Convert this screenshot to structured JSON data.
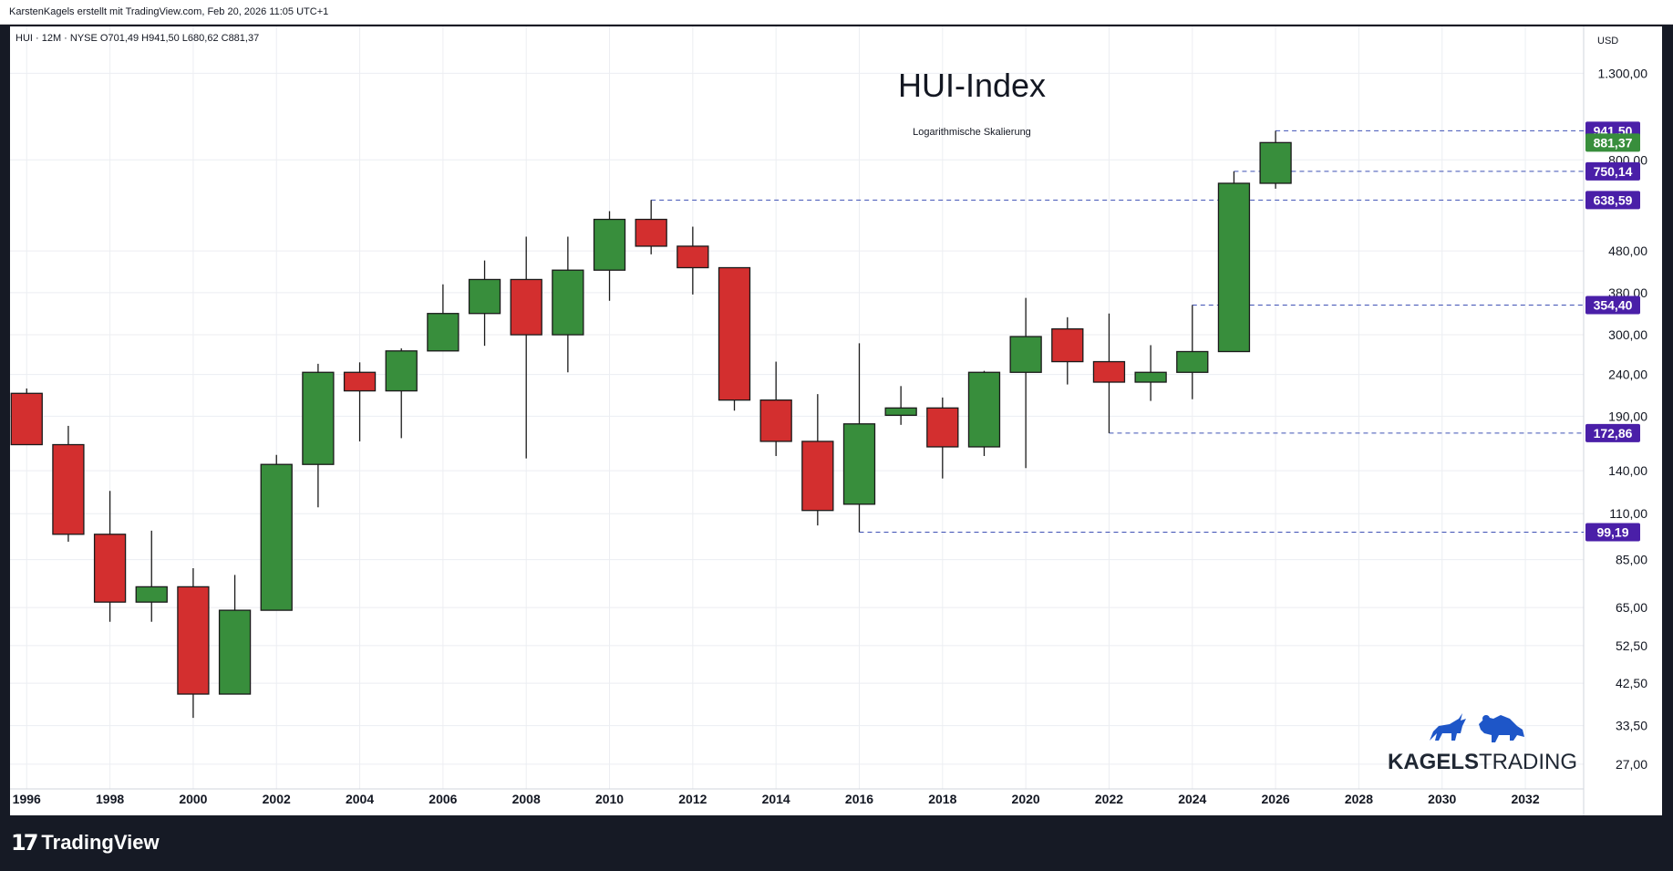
{
  "attribution": "KarstenKagels erstellt mit TradingView.com, Feb 20, 2026 11:05 UTC+1",
  "branding": {
    "footer_logo": "TradingView",
    "logo_mark": "17",
    "watermark_bold": "KAGELS",
    "watermark_light": "TRADING",
    "watermark_icon": "bull-and-bear-icon"
  },
  "colors": {
    "up": "#388e3c",
    "down": "#d32f2f",
    "level_line": "#3f51b5",
    "label_bg": "#4a1fa8",
    "last_price_bg": "#388e3c",
    "grid": "#eceef2"
  },
  "chart_data": {
    "type": "candlestick",
    "symbol_line": "HUI · 12M · NYSE",
    "ohlc_readout": "O701,49  H941,50  L680,62  C881,37",
    "title": "HUI-Index",
    "subtitle": "Logarithmische Skalierung",
    "currency": "USD",
    "y_scale": "log",
    "ylim": [
      23.5,
      1450
    ],
    "xlim": [
      1995.6,
      2033.4
    ],
    "x_ticks": [
      1996,
      1998,
      2000,
      2002,
      2004,
      2006,
      2008,
      2010,
      2012,
      2014,
      2016,
      2018,
      2020,
      2022,
      2024,
      2026,
      2028,
      2030,
      2032
    ],
    "y_ticks": [
      "1.300,00",
      "800,00",
      "480,00",
      "380,00",
      "300,00",
      "240,00",
      "190,00",
      "140,00",
      "110,00",
      "85,00",
      "65,00",
      "52,50",
      "42,50",
      "33,50",
      "27,00"
    ],
    "y_tick_values": [
      1300,
      800,
      480,
      380,
      300,
      240,
      190,
      140,
      110,
      85,
      65,
      52.5,
      42.5,
      33.5,
      27
    ],
    "grid": true,
    "candles": [
      {
        "x": 1996,
        "o": 216,
        "h": 222,
        "l": 162,
        "c": 162
      },
      {
        "x": 1997,
        "o": 162,
        "h": 180,
        "l": 94,
        "c": 98
      },
      {
        "x": 1998,
        "o": 98,
        "h": 125,
        "l": 60,
        "c": 67
      },
      {
        "x": 1999,
        "o": 67,
        "h": 100,
        "l": 60,
        "c": 73
      },
      {
        "x": 2000,
        "o": 73,
        "h": 81,
        "l": 35,
        "c": 40
      },
      {
        "x": 2001,
        "o": 40,
        "h": 78,
        "l": 40,
        "c": 64
      },
      {
        "x": 2002,
        "o": 64,
        "h": 153,
        "l": 64,
        "c": 145
      },
      {
        "x": 2003,
        "o": 145,
        "h": 255,
        "l": 114,
        "c": 243
      },
      {
        "x": 2004,
        "o": 243,
        "h": 257,
        "l": 165,
        "c": 219
      },
      {
        "x": 2005,
        "o": 219,
        "h": 278,
        "l": 168,
        "c": 274
      },
      {
        "x": 2006,
        "o": 274,
        "h": 398,
        "l": 274,
        "c": 338
      },
      {
        "x": 2007,
        "o": 338,
        "h": 455,
        "l": 282,
        "c": 409
      },
      {
        "x": 2008,
        "o": 409,
        "h": 520,
        "l": 150,
        "c": 300
      },
      {
        "x": 2009,
        "o": 300,
        "h": 520,
        "l": 243,
        "c": 431
      },
      {
        "x": 2010,
        "o": 431,
        "h": 600,
        "l": 363,
        "c": 573
      },
      {
        "x": 2011,
        "o": 573,
        "h": 638.59,
        "l": 471,
        "c": 493
      },
      {
        "x": 2012,
        "o": 493,
        "h": 550,
        "l": 376,
        "c": 437
      },
      {
        "x": 2013,
        "o": 437,
        "h": 437,
        "l": 196,
        "c": 208
      },
      {
        "x": 2014,
        "o": 208,
        "h": 258,
        "l": 152,
        "c": 165
      },
      {
        "x": 2015,
        "o": 165,
        "h": 215,
        "l": 103,
        "c": 112
      },
      {
        "x": 2016,
        "o": 116,
        "h": 286,
        "l": 99.19,
        "c": 182
      },
      {
        "x": 2017,
        "o": 191,
        "h": 225,
        "l": 181,
        "c": 199
      },
      {
        "x": 2018,
        "o": 199,
        "h": 211,
        "l": 134,
        "c": 160
      },
      {
        "x": 2019,
        "o": 160,
        "h": 245,
        "l": 152,
        "c": 243
      },
      {
        "x": 2020,
        "o": 243,
        "h": 369,
        "l": 142,
        "c": 297
      },
      {
        "x": 2021,
        "o": 310,
        "h": 331,
        "l": 227,
        "c": 258
      },
      {
        "x": 2022,
        "o": 258,
        "h": 338,
        "l": 172.86,
        "c": 230
      },
      {
        "x": 2023,
        "o": 230,
        "h": 283,
        "l": 207,
        "c": 243
      },
      {
        "x": 2024,
        "o": 243,
        "h": 354.4,
        "l": 209,
        "c": 273
      },
      {
        "x": 2025,
        "o": 273,
        "h": 750.14,
        "l": 273,
        "c": 701.49
      },
      {
        "x": 2026,
        "o": 701.49,
        "h": 941.5,
        "l": 680.62,
        "c": 881.37
      }
    ],
    "levels": [
      {
        "value": 941.5,
        "label": "941,50",
        "from_x": 2026
      },
      {
        "value": 750.14,
        "label": "750,14",
        "from_x": 2025
      },
      {
        "value": 638.59,
        "label": "638,59",
        "from_x": 2011
      },
      {
        "value": 354.4,
        "label": "354,40",
        "from_x": 2024
      },
      {
        "value": 172.86,
        "label": "172,86",
        "from_x": 2022
      },
      {
        "value": 99.19,
        "label": "99,19",
        "from_x": 2016
      }
    ],
    "last_price": {
      "value": 881.37,
      "label": "881,37"
    }
  }
}
